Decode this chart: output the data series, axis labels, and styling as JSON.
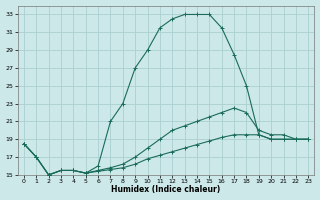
{
  "xlabel": "Humidex (Indice chaleur)",
  "bg_color": "#cce8e8",
  "grid_color": "#aad0d0",
  "line_color": "#1a6b5a",
  "xlim": [
    -0.5,
    23.5
  ],
  "ylim": [
    15,
    34
  ],
  "xticks": [
    0,
    1,
    2,
    3,
    4,
    5,
    6,
    7,
    8,
    9,
    10,
    11,
    12,
    13,
    14,
    15,
    16,
    17,
    18,
    19,
    20,
    21,
    22,
    23
  ],
  "yticks": [
    15,
    17,
    19,
    21,
    23,
    25,
    27,
    29,
    31,
    33
  ],
  "line1_x": [
    0,
    1,
    2,
    3,
    4,
    5,
    6,
    7,
    8,
    9,
    10,
    11,
    12,
    13,
    14,
    15,
    16,
    17,
    18,
    19,
    20,
    21,
    22,
    23
  ],
  "line1_y": [
    18.5,
    17.0,
    15.0,
    15.5,
    15.5,
    15.2,
    16.0,
    21.0,
    23.0,
    27.0,
    29.0,
    31.5,
    32.5,
    33.0,
    33.0,
    33.0,
    31.5,
    28.5,
    25.0,
    19.5,
    19.0,
    19.0,
    19.0,
    19.0
  ],
  "line2_x": [
    0,
    1,
    2,
    3,
    4,
    5,
    6,
    7,
    8,
    9,
    10,
    11,
    12,
    13,
    14,
    15,
    16,
    17,
    18,
    19,
    20,
    21,
    22,
    23
  ],
  "line2_y": [
    18.5,
    17.0,
    15.0,
    15.5,
    15.5,
    15.2,
    15.5,
    15.8,
    16.2,
    17.0,
    18.0,
    19.0,
    20.0,
    20.5,
    21.0,
    21.5,
    22.0,
    22.5,
    22.0,
    20.0,
    19.5,
    19.5,
    19.0,
    19.0
  ],
  "line3_x": [
    0,
    1,
    2,
    3,
    4,
    5,
    6,
    7,
    8,
    9,
    10,
    11,
    12,
    13,
    14,
    15,
    16,
    17,
    18,
    19,
    20,
    21,
    22,
    23
  ],
  "line3_y": [
    18.5,
    17.0,
    15.0,
    15.5,
    15.5,
    15.2,
    15.4,
    15.6,
    15.8,
    16.2,
    16.8,
    17.2,
    17.6,
    18.0,
    18.4,
    18.8,
    19.2,
    19.5,
    19.5,
    19.5,
    19.0,
    19.0,
    19.0,
    19.0
  ]
}
